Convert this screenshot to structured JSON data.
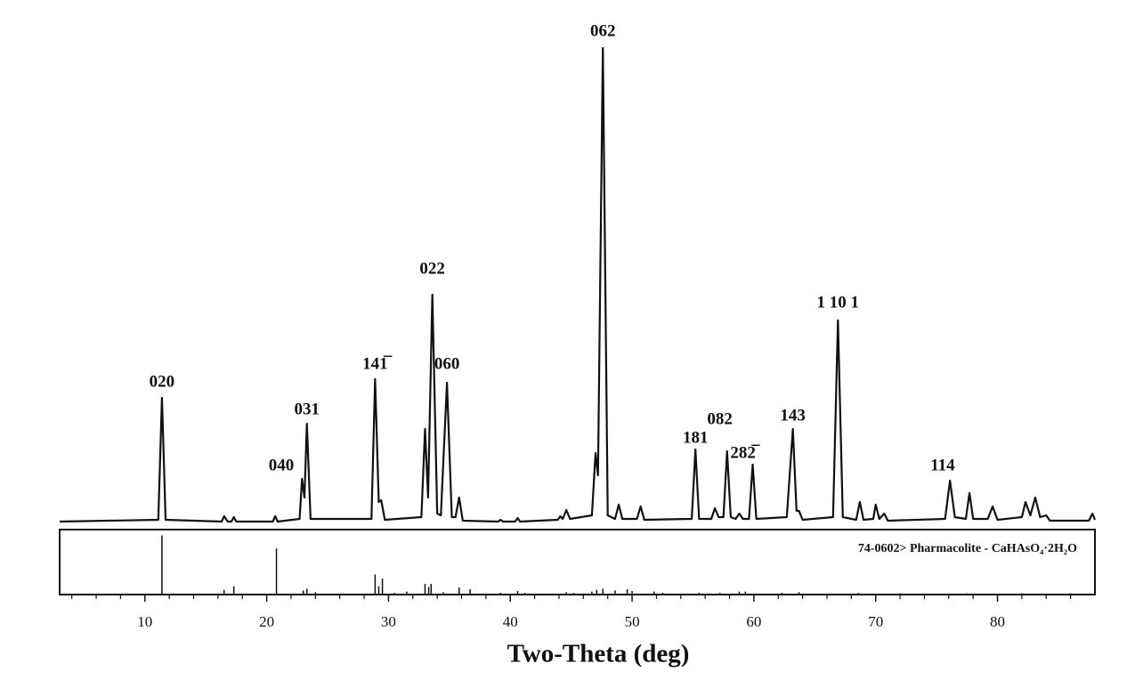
{
  "chart_data": {
    "type": "line",
    "xlabel": "Two-Theta (deg)",
    "xlim": [
      3,
      88
    ],
    "xticks": [
      10,
      20,
      30,
      40,
      50,
      60,
      70,
      80
    ],
    "xminorticks": [
      4,
      6,
      8,
      12,
      14,
      16,
      18,
      22,
      24,
      26,
      28,
      32,
      34,
      36,
      38,
      42,
      44,
      46,
      48,
      52,
      54,
      56,
      58,
      62,
      64,
      66,
      68,
      72,
      74,
      76,
      78,
      82,
      84,
      86
    ],
    "ylim": [
      0,
      560
    ],
    "color": "#111111",
    "x": [
      3,
      11.1,
      11.4,
      11.7,
      16.3,
      16.5,
      16.8,
      17.1,
      17.3,
      17.5,
      20.5,
      20.7,
      20.9,
      22.7,
      22.9,
      23.1,
      23.3,
      23.6,
      28.6,
      28.9,
      29.2,
      29.4,
      29.7,
      32.7,
      33.0,
      33.25,
      33.6,
      34.0,
      34.3,
      34.8,
      35.2,
      35.5,
      35.8,
      36.1,
      39.0,
      39.2,
      39.4,
      40.4,
      40.6,
      40.8,
      43.9,
      44.1,
      44.3,
      44.6,
      44.9,
      46.7,
      47.0,
      47.2,
      47.6,
      48.0,
      48.6,
      48.9,
      49.2,
      50.4,
      50.7,
      51.0,
      54.9,
      55.2,
      55.5,
      56.5,
      56.8,
      57.1,
      57.5,
      57.8,
      58.1,
      58.5,
      58.8,
      59.1,
      59.6,
      59.9,
      60.2,
      62.7,
      63.2,
      63.5,
      63.7,
      64.0,
      66.5,
      66.9,
      67.3,
      68.4,
      68.7,
      69.0,
      69.8,
      70.0,
      70.3,
      70.7,
      71.0,
      75.7,
      76.1,
      76.5,
      77.4,
      77.7,
      78.0,
      79.2,
      79.6,
      80.0,
      82.0,
      82.3,
      82.7,
      83.1,
      83.5,
      84.0,
      84.3,
      87.5,
      87.8,
      88
    ],
    "values": [
      3,
      5,
      142,
      5,
      3,
      9,
      3,
      3,
      8,
      3,
      3,
      9,
      3,
      6,
      51,
      30,
      113,
      6,
      6,
      163,
      25,
      27,
      5,
      8,
      107,
      30,
      258,
      12,
      10,
      159,
      8,
      8,
      30,
      4,
      3,
      5,
      3,
      3,
      7,
      3,
      5,
      9,
      6,
      16,
      6,
      10,
      80,
      55,
      535,
      10,
      6,
      22,
      6,
      6,
      20,
      5,
      6,
      84,
      6,
      6,
      18,
      8,
      8,
      82,
      8,
      6,
      12,
      6,
      6,
      67,
      6,
      8,
      107,
      15,
      15,
      5,
      8,
      229,
      8,
      5,
      25,
      5,
      6,
      22,
      6,
      12,
      4,
      6,
      49,
      8,
      6,
      35,
      6,
      6,
      20,
      5,
      8,
      25,
      10,
      30,
      8,
      10,
      4,
      4,
      12,
      5
    ],
    "annotations": [
      {
        "text": "020",
        "x": 11.4,
        "y": 159
      },
      {
        "text": "040",
        "x": 21.2,
        "y": 65
      },
      {
        "text": "031",
        "x": 23.3,
        "y": 128
      },
      {
        "text": "141̅",
        "x": 28.9,
        "y": 179
      },
      {
        "text": "022",
        "x": 33.6,
        "y": 286
      },
      {
        "text": "060",
        "x": 34.8,
        "y": 179
      },
      {
        "text": "062",
        "x": 47.6,
        "y": 553
      },
      {
        "text": "181",
        "x": 55.2,
        "y": 96
      },
      {
        "text": "082",
        "x": 57.2,
        "y": 117
      },
      {
        "text": "282̅",
        "x": 59.1,
        "y": 79
      },
      {
        "text": "143",
        "x": 63.2,
        "y": 121
      },
      {
        "text": "1 10 1",
        "x": 66.9,
        "y": 248
      },
      {
        "text": "114",
        "x": 75.5,
        "y": 65
      }
    ],
    "reference": {
      "name": "74-0602> Pharmacolite - CaHAsO₄·2H₂O",
      "ylim": [
        0,
        110
      ],
      "positions": [
        11.4,
        16.5,
        17.3,
        20.8,
        23.0,
        23.3,
        24.0,
        28.9,
        29.2,
        29.5,
        30.5,
        31.5,
        33.0,
        33.3,
        33.5,
        34.5,
        35.8,
        36.7,
        39.2,
        40.6,
        41.2,
        44.6,
        45.2,
        46.7,
        47.1,
        47.6,
        48.6,
        49.6,
        50.0,
        51.8,
        52.5,
        55.5,
        57.2,
        58.8,
        59.3,
        62.3,
        63.7,
        68.6,
        72.0,
        77.5,
        82.0,
        86.0,
        88.0
      ],
      "values": [
        100,
        8,
        14,
        78,
        7,
        10,
        4,
        34,
        14,
        27,
        3,
        5,
        18,
        13,
        18,
        4,
        12,
        9,
        3,
        6,
        3,
        4,
        3,
        5,
        8,
        10,
        7,
        9,
        6,
        5,
        3,
        3,
        3,
        5,
        5,
        3,
        4,
        3,
        2,
        2,
        2,
        2,
        2
      ]
    }
  }
}
